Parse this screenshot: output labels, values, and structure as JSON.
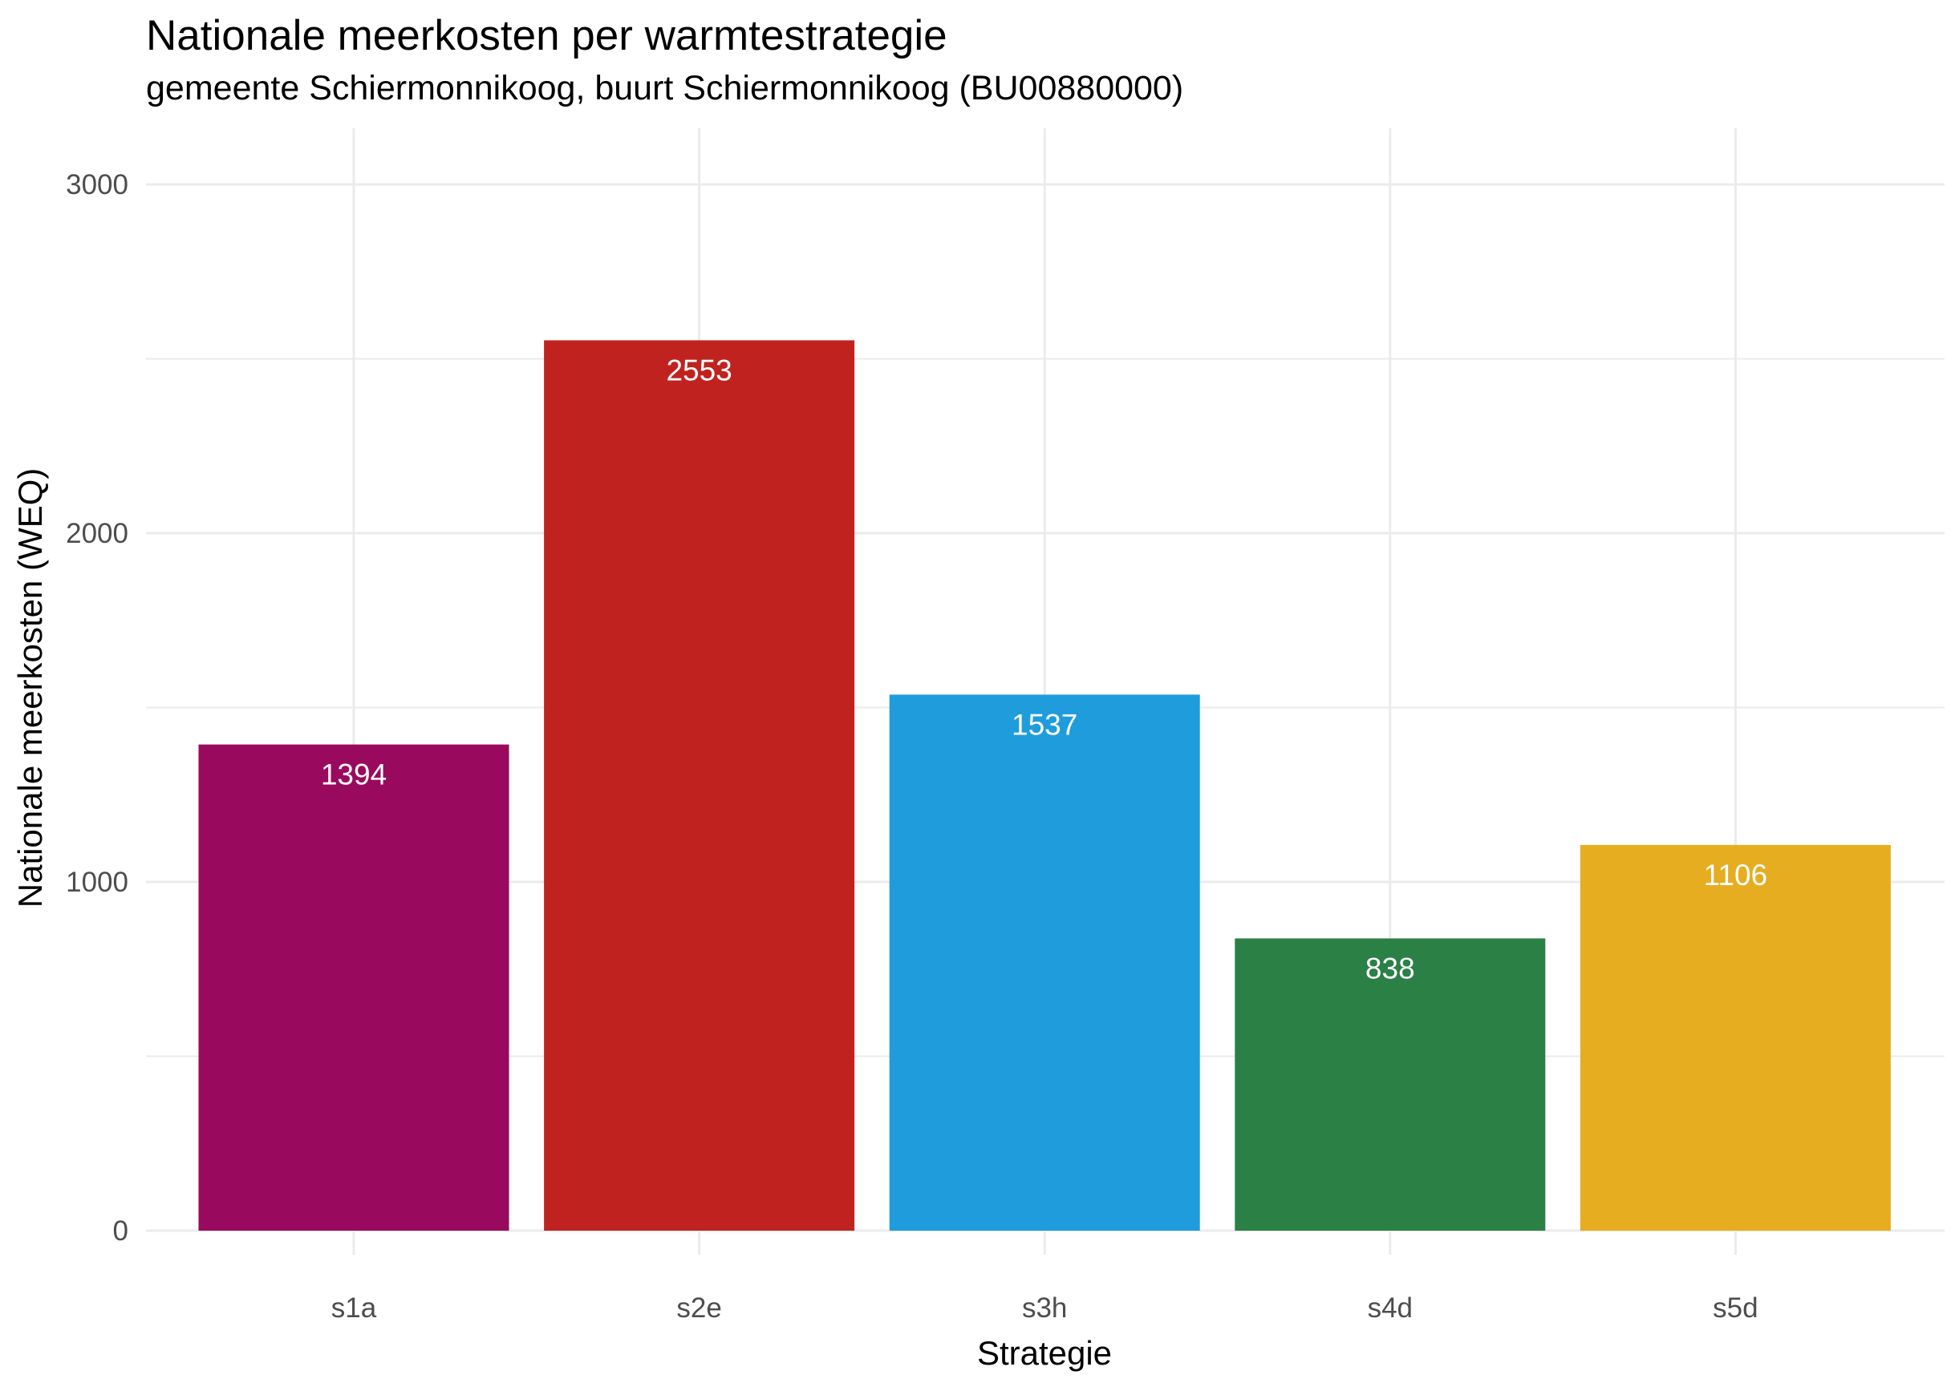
{
  "chart_data": {
    "type": "bar",
    "title": "Nationale meerkosten per warmtestrategie",
    "subtitle": "gemeente Schiermonnikoog, buurt Schiermonnikoog (BU00880000)",
    "xlabel": "Strategie",
    "ylabel": "Nationale meerkosten (WEQ)",
    "categories": [
      "s1a",
      "s2e",
      "s3h",
      "s4d",
      "s5d"
    ],
    "values": [
      1394,
      2553,
      1537,
      838,
      1106
    ],
    "data_labels": [
      "1394",
      "2553",
      "1537",
      "838",
      "1106"
    ],
    "colors": [
      "#990a5e",
      "#c0231f",
      "#1f9cdb",
      "#2a8045",
      "#e6ad20"
    ],
    "ylim": [
      0,
      3000
    ],
    "yticks": [
      0,
      1000,
      2000,
      3000
    ],
    "grid": true,
    "gridline_color": "#ebebeb",
    "legend": "none"
  }
}
